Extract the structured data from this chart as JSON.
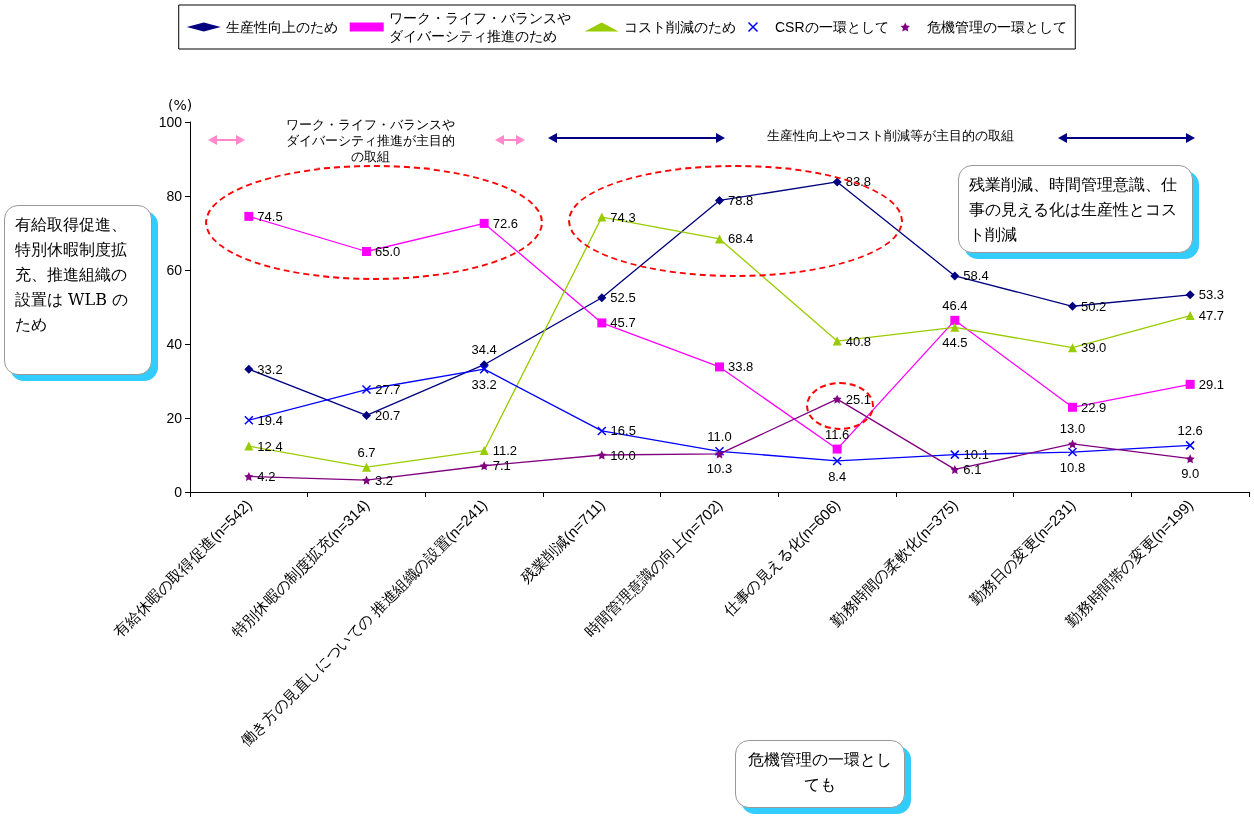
{
  "chart_data": {
    "type": "line",
    "categories": [
      "有給休暇の取得促進(n=542)",
      "特別休暇の制度拡充(n=314)",
      "働き方の見直しについての 推進組織の設置(n=241)",
      "残業削減(n=711)",
      "時間管理意識の向上(n=702)",
      "仕事の見える化(n=606)",
      "勤務時間の柔軟化(n=375)",
      "勤務日の変更(n=231)",
      "勤務時間帯の変更(n=199)"
    ],
    "series": [
      {
        "name": "生産性向上のため",
        "color": "#000080",
        "marker": "diamond",
        "values": [
          33.2,
          20.7,
          34.4,
          52.5,
          78.8,
          83.8,
          58.4,
          50.2,
          53.3
        ],
        "value_labels": [
          "33.2",
          "20.7",
          "34.4",
          "52.5",
          "78.8",
          "83.8",
          "58.4",
          "50.2",
          "53.3"
        ]
      },
      {
        "name": "ワーク・ライフ・バランスやダイバーシティ推進のため",
        "color": "#ff00ff",
        "marker": "square",
        "values": [
          74.5,
          65.0,
          72.6,
          45.7,
          33.8,
          11.6,
          46.4,
          22.9,
          29.1
        ],
        "value_labels": [
          "74.5",
          "65.0",
          "72.6",
          "45.7",
          "33.8",
          "11.6",
          "46.4",
          "22.9",
          "29.1"
        ]
      },
      {
        "name": "コスト削減のため",
        "color": "#99cc00",
        "marker": "triangle",
        "values": [
          12.4,
          6.7,
          11.2,
          74.3,
          68.4,
          40.8,
          44.5,
          39.0,
          47.7
        ],
        "value_labels": [
          "12.4",
          "6.7",
          "11.2",
          "74.3",
          "68.4",
          "40.8",
          "44.5",
          "39.0",
          "47.7"
        ]
      },
      {
        "name": "CSRの一環として",
        "color": "#0000ff",
        "marker": "cross",
        "values": [
          19.4,
          27.7,
          33.2,
          16.5,
          11.0,
          8.4,
          10.1,
          10.8,
          12.6
        ],
        "value_labels": [
          "19.4",
          "27.7",
          "33.2",
          "16.5",
          "11.0",
          "8.4",
          "10.1",
          "10.8",
          "12.6"
        ]
      },
      {
        "name": "危機管理の一環として",
        "color": "#800080",
        "marker": "star",
        "values": [
          4.2,
          3.2,
          7.1,
          10.0,
          10.3,
          25.1,
          6.1,
          13.0,
          9.0
        ],
        "value_labels": [
          "4.2",
          "3.2",
          "7.1",
          "10.0",
          "10.3",
          "25.1",
          "6.1",
          "13.0",
          "9.0"
        ]
      }
    ],
    "ylim": [
      0,
      100
    ],
    "yticks": [
      0,
      20,
      40,
      60,
      80,
      100
    ],
    "grid": false,
    "legend": "top",
    "annotations": [
      "(%)",
      "ワーク・ライフ・バランスやダイバーシティ推進が主目的の取組",
      "生産性向上やコスト削減等が主目的の取組",
      "有給取得促進、特別休暇制度拡充、推進組織の設置は WLB のため",
      "残業削減、時間管理意識、仕事の見える化は生産性とコスト削減",
      "危機管理の一環としても"
    ]
  }
}
